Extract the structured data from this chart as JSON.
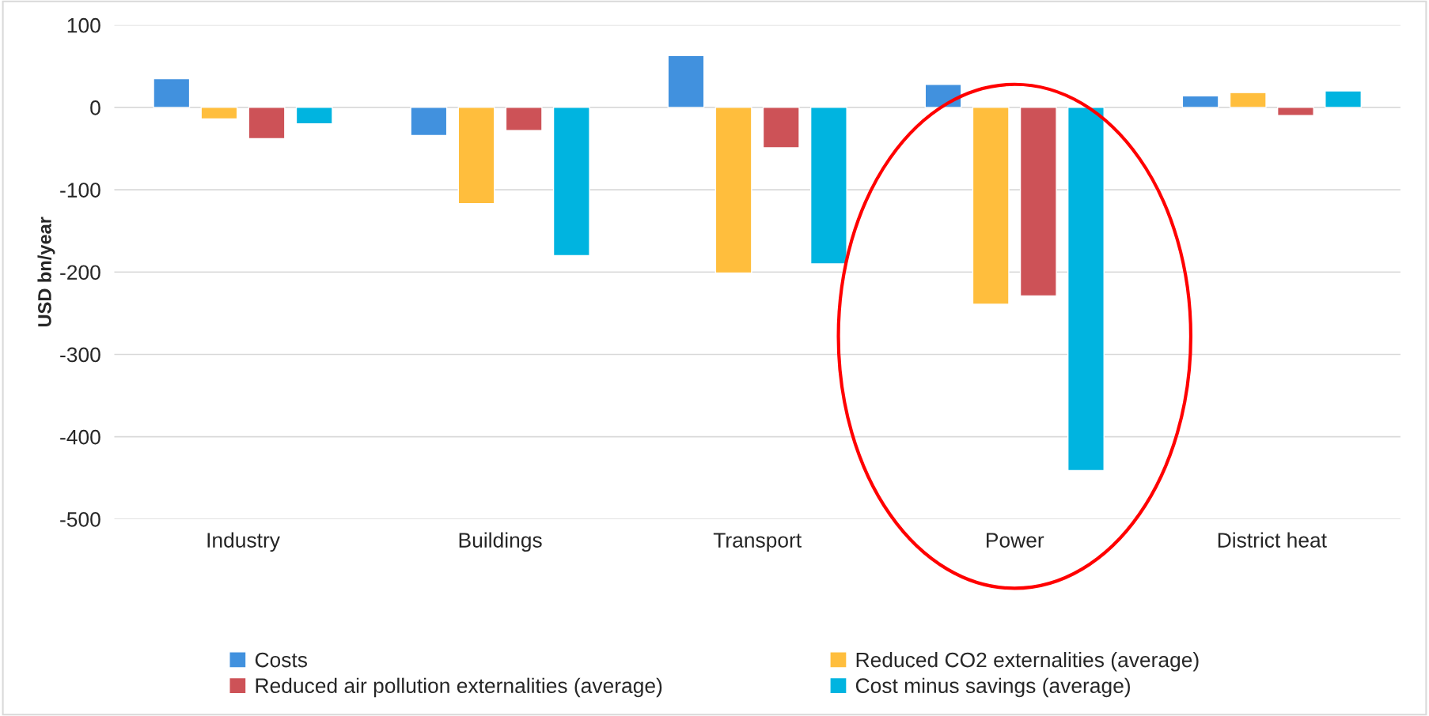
{
  "chart_data": {
    "type": "bar",
    "ylabel": "USD bn/year",
    "categories": [
      "Industry",
      "Buildings",
      "Transport",
      "Power",
      "District heat"
    ],
    "series": [
      {
        "name": "Costs",
        "color": "#4191de",
        "values": [
          35,
          -34,
          63,
          28,
          14
        ]
      },
      {
        "name": "Reduced CO2 externalities (average)",
        "color": "#ffbe3d",
        "values": [
          -14,
          -117,
          -201,
          -239,
          18
        ]
      },
      {
        "name": "Reduced air pollution externalities (average)",
        "color": "#cd5257",
        "values": [
          -38,
          -28,
          -49,
          -229,
          -10
        ]
      },
      {
        "name": "Cost minus savings (average)",
        "color": "#00b4e0",
        "values": [
          -20,
          -180,
          -190,
          -441,
          20
        ]
      }
    ],
    "ylim": [
      -500,
      100
    ],
    "yticks": [
      -500,
      -400,
      -300,
      -200,
      -100,
      0,
      100
    ],
    "grid": "y",
    "legend": "bottom"
  }
}
